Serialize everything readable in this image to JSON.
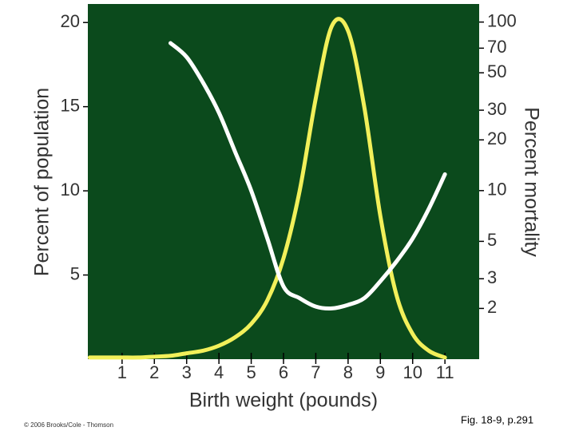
{
  "chart_data": {
    "type": "line",
    "x_label": "Birth weight (pounds)",
    "y_label": "Percent of population",
    "y2_label": "Percent mortality",
    "x": [
      0,
      0.5,
      1,
      1.5,
      2,
      2.5,
      3,
      3.5,
      4,
      4.5,
      5,
      5.5,
      6,
      6.5,
      7,
      7.5,
      8,
      8.5,
      9,
      9.5,
      10,
      10.5,
      11
    ],
    "series": [
      {
        "name": "Percent of population",
        "color": "#f2f05a",
        "values": [
          0.1,
          0.1,
          0.1,
          0.1,
          0.15,
          0.2,
          0.35,
          0.5,
          0.8,
          1.3,
          2.1,
          3.5,
          6,
          10,
          15.5,
          19.8,
          19.5,
          15,
          8.5,
          3.8,
          1.5,
          0.5,
          0.1
        ]
      },
      {
        "name": "Percent mortality",
        "color": "#ffffff",
        "axis": "y2",
        "values": [
          null,
          null,
          null,
          null,
          null,
          75,
          62,
          44,
          29,
          17,
          10,
          5.2,
          2.7,
          2.3,
          2.05,
          2.0,
          2.1,
          2.3,
          2.9,
          3.8,
          5.2,
          7.8,
          12.5
        ]
      }
    ],
    "xlim": [
      -0.06,
      12.06
    ],
    "xticks": [
      1,
      2,
      3,
      4,
      5,
      6,
      7,
      8,
      9,
      10,
      11
    ],
    "ylim": [
      0,
      21.1
    ],
    "yticks": [
      5,
      10,
      15,
      20
    ],
    "y2lim": [
      1,
      128
    ],
    "y2ticks": [
      2,
      3,
      5,
      10,
      20,
      30,
      50,
      70,
      100
    ],
    "y2log": true,
    "plot_background": "#0b4a1c",
    "credit": "© 2006 Brooks/Cole - Thomson",
    "figure_ref": "Fig. 18-9, p.291"
  }
}
